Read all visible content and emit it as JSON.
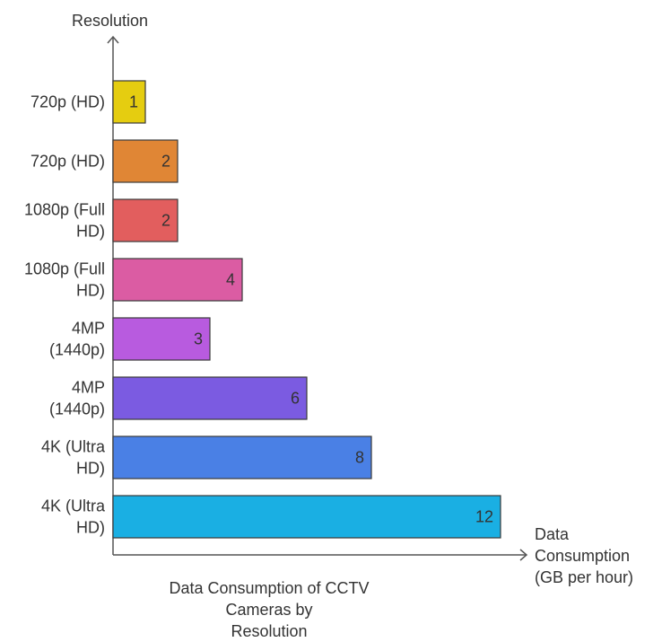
{
  "chart_data": {
    "type": "bar",
    "orientation": "horizontal",
    "title": "Data Consumption of CCTV Cameras by\nResolution",
    "ylabel": "Resolution",
    "xlabel": "Data\nConsumption\n(GB per hour)",
    "categories": [
      "720p (HD)",
      "720p (HD)",
      "1080p (Full\nHD)",
      "1080p (Full\nHD)",
      "4MP\n(1440p)",
      "4MP\n(1440p)",
      "4K (Ultra\nHD)",
      "4K (Ultra\nHD)"
    ],
    "values": [
      1,
      2,
      2,
      4,
      3,
      6,
      8,
      12
    ],
    "xlim": [
      0,
      13
    ],
    "data_labels": [
      "1",
      "2",
      "2",
      "4",
      "3",
      "6",
      "8",
      "12"
    ],
    "colors": [
      "#E5CD10",
      "#E08635",
      "#E25E5E",
      "#DB5CA3",
      "#B85BDF",
      "#7B5BE1",
      "#4A80E5",
      "#1AAFE3"
    ],
    "grid": false,
    "legend": "none"
  }
}
